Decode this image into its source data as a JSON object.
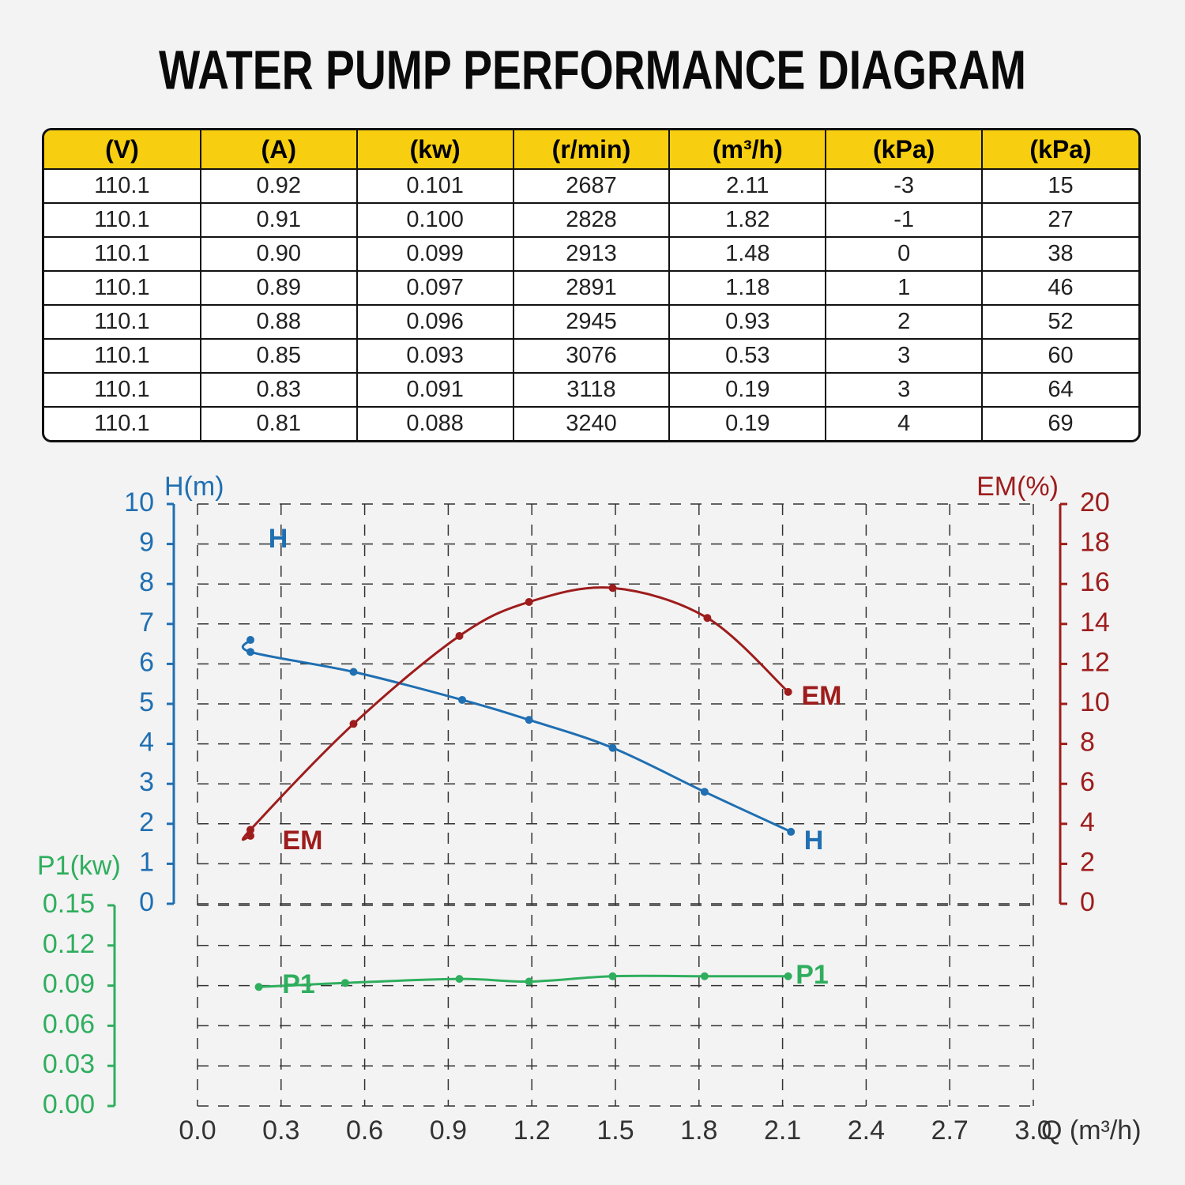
{
  "title": "WATER PUMP PERFORMANCE DIAGRAM",
  "table": {
    "header": [
      "(V)",
      "(A)",
      "(kw)",
      "(r/min)",
      "(m³/h)",
      "(kPa)",
      "(kPa)"
    ],
    "rows": [
      [
        "110.1",
        "0.92",
        "0.101",
        "2687",
        "2.11",
        "-3",
        "15"
      ],
      [
        "110.1",
        "0.91",
        "0.100",
        "2828",
        "1.82",
        "-1",
        "27"
      ],
      [
        "110.1",
        "0.90",
        "0.099",
        "2913",
        "1.48",
        "0",
        "38"
      ],
      [
        "110.1",
        "0.89",
        "0.097",
        "2891",
        "1.18",
        "1",
        "46"
      ],
      [
        "110.1",
        "0.88",
        "0.096",
        "2945",
        "0.93",
        "2",
        "52"
      ],
      [
        "110.1",
        "0.85",
        "0.093",
        "3076",
        "0.53",
        "3",
        "60"
      ],
      [
        "110.1",
        "0.83",
        "0.091",
        "3118",
        "0.19",
        "3",
        "64"
      ],
      [
        "110.1",
        "0.81",
        "0.088",
        "3240",
        "0.19",
        "4",
        "69"
      ]
    ]
  },
  "chart_data": {
    "type": "line",
    "x_label": "Q (m³/h)",
    "xlim": [
      0,
      3
    ],
    "xticks": [
      {
        "value": 0,
        "label": "0.0"
      },
      0.3,
      0.6,
      0.9,
      1.2,
      1.5,
      1.8,
      2.1,
      2.4,
      2.7,
      {
        "value": 3,
        "label": "3.0"
      }
    ],
    "y_label": "H(m)",
    "ylim": [
      0,
      10
    ],
    "yticks": [
      0,
      1,
      2,
      3,
      4,
      5,
      6,
      7,
      8,
      9,
      10
    ],
    "y2_label": "EM(%)",
    "y2lim": [
      0,
      20
    ],
    "y2ticks": [
      0,
      2,
      4,
      6,
      8,
      10,
      12,
      14,
      16,
      18,
      20
    ],
    "y3_label": "P1(kw)",
    "y3lim": [
      0,
      0.15
    ],
    "y3ticks": [
      {
        "value": 0,
        "label": "0.00"
      },
      0.03,
      0.06,
      0.09,
      0.12,
      0.15
    ],
    "grid": true,
    "series": [
      {
        "name": "H",
        "color": "#1f6fb2",
        "axis": "y",
        "x": [
          0.19,
          0.19,
          0.56,
          0.95,
          1.19,
          1.49,
          1.82,
          2.13
        ],
        "values": [
          6.6,
          6.3,
          5.8,
          5.1,
          4.6,
          3.9,
          2.8,
          1.8
        ]
      },
      {
        "name": "EM",
        "color": "#9e1c1c",
        "axis": "y2",
        "x": [
          0.19,
          0.19,
          0.56,
          0.94,
          1.19,
          1.49,
          1.83,
          2.12
        ],
        "values": [
          3.4,
          3.7,
          9.0,
          13.4,
          15.1,
          15.8,
          14.3,
          10.6
        ]
      },
      {
        "name": "P1",
        "color": "#2fae5e",
        "axis": "y3",
        "x": [
          0.22,
          0.53,
          0.94,
          1.19,
          1.49,
          1.82,
          2.12
        ],
        "values": [
          0.089,
          0.092,
          0.095,
          0.093,
          0.097,
          0.097,
          0.097
        ]
      }
    ]
  }
}
